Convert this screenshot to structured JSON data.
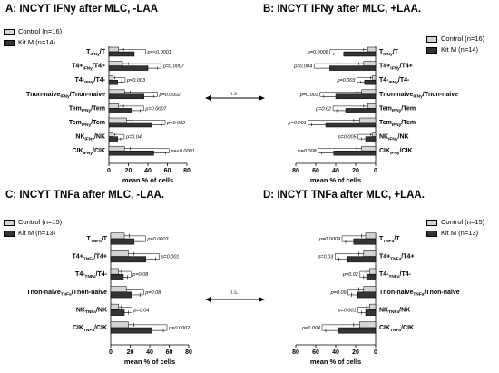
{
  "colors": {
    "control": "#d4d4d4",
    "kitm": "#333333"
  },
  "between_panel_label": "n.s",
  "between_panel_label_2": "n.s.",
  "chart_data": [
    {
      "type": "bar",
      "panel": "A",
      "title": "A: INCYT IFNy after MLC, -LAA",
      "xlabel": "mean % of cells",
      "xlim": [
        0,
        80
      ],
      "xticks": [
        "0",
        "20",
        "40",
        "60",
        "80"
      ],
      "mirrored": false,
      "categories": [
        "T IFNy/T",
        "T4+ IFNy/T4+",
        "T4- IFNy/T4-",
        "Tnon-naive IFNy/Tnon-naive",
        "Tem IFNy/Tem",
        "Tcm IFNy/Tcm",
        "NK IFNy/NK",
        "CIK IFNy/CIK"
      ],
      "cat_main": [
        "T",
        "T4+",
        "T4-",
        "Tnon-naive",
        "Tem",
        "Tcm",
        "NK",
        "CIK"
      ],
      "cat_sub": [
        "IFNy",
        "IFNy",
        "IFNy",
        "IFNy",
        "IFNy",
        "IFNy",
        "IFNy",
        "IFNy"
      ],
      "cat_tail": [
        "/T",
        "/T4+",
        "/T4-",
        "/Tnon-naive",
        "/Tem",
        "/Tcm",
        "/NK",
        "/CIK"
      ],
      "series": [
        {
          "name": "Control (n=16)",
          "values": [
            10,
            14,
            4,
            16,
            10,
            18,
            4,
            16
          ],
          "errors": [
            5,
            6,
            2,
            6,
            5,
            6,
            2,
            6
          ]
        },
        {
          "name": "Kit M (n=14)",
          "values": [
            26,
            40,
            9,
            36,
            24,
            44,
            9,
            46
          ],
          "errors": [
            8,
            10,
            4,
            10,
            8,
            10,
            3,
            12
          ]
        }
      ],
      "pvalues": [
        "p=<0.0001",
        "p=0.0007",
        "p=0.003",
        "p=0.0002",
        "p=0.0007",
        "p=0.002",
        "p=0.04",
        "p=<0.0001"
      ]
    },
    {
      "type": "bar",
      "panel": "B",
      "title": "B: INCYT IFNy after MLC, +LAA.",
      "xlabel": "mean % of cells",
      "xlim": [
        0,
        80
      ],
      "xticks": [
        "80",
        "60",
        "40",
        "20",
        "0"
      ],
      "mirrored": true,
      "categories": [
        "T IFNy/T",
        "T4+ IFNy/T4+",
        "T4- IFNy/T4-",
        "Tnon-naive IFNy/Tnon-naive",
        "Tem IFNy/Tem",
        "Tcm IFNy/Tcm",
        "NK IFNy/NK",
        "CIK IFNy/CIK"
      ],
      "cat_main": [
        "T",
        "T4+",
        "T4-",
        "Tnon-naive",
        "Tem",
        "Tcm",
        "NK",
        "CIK"
      ],
      "cat_sub": [
        "IFNy",
        "IFNy",
        "IFNy",
        "IFNy",
        "IFNy",
        "IFNy",
        "IFNy",
        "IFNy"
      ],
      "cat_tail": [
        "/T",
        "/T4+",
        "/T4-",
        "/Tnon-naive",
        "/Tem",
        "/Tcm",
        "/NK",
        "/CIK"
      ],
      "series": [
        {
          "name": "Control (n=16)",
          "values": [
            8,
            12,
            3,
            14,
            8,
            16,
            3,
            14
          ],
          "errors": [
            4,
            5,
            2,
            5,
            4,
            6,
            2,
            5
          ]
        },
        {
          "name": "Kit M (n=14)",
          "values": [
            32,
            46,
            11,
            40,
            30,
            50,
            10,
            42
          ],
          "errors": [
            10,
            12,
            4,
            12,
            9,
            14,
            4,
            12
          ]
        }
      ],
      "pvalues": [
        "p=0.0008",
        "p=0.004",
        "p=0.003",
        "p=0.003",
        "p=0.02",
        "p=0.001",
        "p=0.005",
        "p=0.008"
      ]
    },
    {
      "type": "bar",
      "panel": "C",
      "title": "C: INCYT TNFa after MLC, -LAA.",
      "xlabel": "mean % of cells",
      "xlim": [
        0,
        80
      ],
      "xticks": [
        "0",
        "20",
        "40",
        "60",
        "80"
      ],
      "mirrored": false,
      "categories": [
        "T TNFa/T",
        "T4+ TNFa/T4+",
        "T4- TNFa/T4-",
        "Tnon-naive TNFa/Tnon-naive",
        "NK TNFa/NK",
        "CIK TNFa/CIK"
      ],
      "cat_main": [
        "T",
        "T4+",
        "T4-",
        "Tnon-naive",
        "NK",
        "CIK"
      ],
      "cat_sub": [
        "TNFa",
        "TNFa",
        "TNFa",
        "TNFa",
        "TNFa",
        "TNFa"
      ],
      "cat_tail": [
        "/T",
        "/T4+",
        "/T4-",
        "/Tnon-naive",
        "/NK",
        "/CIK"
      ],
      "series": [
        {
          "name": "Control (n=15)",
          "values": [
            14,
            18,
            8,
            16,
            8,
            18
          ],
          "errors": [
            5,
            6,
            3,
            6,
            3,
            6
          ]
        },
        {
          "name": "Kit M (n=13)",
          "values": [
            24,
            36,
            13,
            22,
            14,
            42
          ],
          "errors": [
            8,
            10,
            4,
            8,
            4,
            12
          ]
        }
      ],
      "pvalues": [
        "p=0.0003",
        "p=0.001",
        "p=0.08",
        "p=0.08",
        "p=0.04",
        "p=0.0002"
      ]
    },
    {
      "type": "bar",
      "panel": "D",
      "title": "D: INCYT TNFa after MLC, +LAA.",
      "xlabel": "mean % of cells",
      "xlim": [
        0,
        80
      ],
      "xticks": [
        "80",
        "60",
        "40",
        "20",
        "0"
      ],
      "mirrored": true,
      "categories": [
        "T TNFa/T",
        "T4+ TNFa/T4+",
        "T4- TNFa/T4-",
        "Tnon-naive TNFa/Tnon-naive",
        "NK TNFa/NK",
        "CIK TNFa/CIK"
      ],
      "cat_main": [
        "T",
        "T4+",
        "T4-",
        "Tnon-naive",
        "NK",
        "CIK"
      ],
      "cat_sub": [
        "TNFa",
        "TNFa",
        "TNFa",
        "TNFa",
        "TNFa",
        "TNFa"
      ],
      "cat_tail": [
        "/T",
        "/T4+",
        "/T4-",
        "/Tnon-naive",
        "/NK",
        "/CIK"
      ],
      "series": [
        {
          "name": "Control (n=15)",
          "values": [
            10,
            12,
            6,
            12,
            6,
            16
          ],
          "errors": [
            4,
            5,
            3,
            5,
            3,
            6
          ]
        },
        {
          "name": "Kit M (n=13)",
          "values": [
            22,
            28,
            9,
            18,
            10,
            38
          ],
          "errors": [
            8,
            9,
            3,
            6,
            4,
            12
          ]
        }
      ],
      "pvalues": [
        "p=0.0009",
        "p=0.03",
        "p=0.02",
        "p=0.09",
        "p=0.001",
        "p=0.004"
      ]
    }
  ]
}
